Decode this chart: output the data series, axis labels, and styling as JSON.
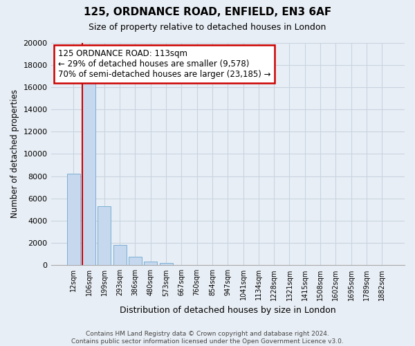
{
  "title": "125, ORDNANCE ROAD, ENFIELD, EN3 6AF",
  "subtitle": "Size of property relative to detached houses in London",
  "xlabel": "Distribution of detached houses by size in London",
  "ylabel": "Number of detached properties",
  "bar_labels": [
    "12sqm",
    "106sqm",
    "199sqm",
    "293sqm",
    "386sqm",
    "480sqm",
    "573sqm",
    "667sqm",
    "760sqm",
    "854sqm",
    "947sqm",
    "1041sqm",
    "1134sqm",
    "1228sqm",
    "1321sqm",
    "1415sqm",
    "1508sqm",
    "1602sqm",
    "1695sqm",
    "1789sqm",
    "1882sqm"
  ],
  "bar_values": [
    8200,
    16600,
    5300,
    1850,
    750,
    300,
    180,
    0,
    0,
    0,
    0,
    0,
    0,
    0,
    0,
    0,
    0,
    0,
    0,
    0,
    0
  ],
  "bar_color": "#c5d8ee",
  "bar_edge_color": "#7bafd4",
  "vline_color": "#cc0000",
  "ylim": [
    0,
    20000
  ],
  "yticks": [
    0,
    2000,
    4000,
    6000,
    8000,
    10000,
    12000,
    14000,
    16000,
    18000,
    20000
  ],
  "annotation_line1": "125 ORDNANCE ROAD: 113sqm",
  "annotation_line2": "← 29% of detached houses are smaller (9,578)",
  "annotation_line3": "70% of semi-detached houses are larger (23,185) →",
  "annotation_box_color": "#ffffff",
  "annotation_border_color": "#cc0000",
  "footer_line1": "Contains HM Land Registry data © Crown copyright and database right 2024.",
  "footer_line2": "Contains public sector information licensed under the Open Government Licence v3.0.",
  "background_color": "#e8eef5",
  "grid_color": "#c8d4e0",
  "fig_width": 6.0,
  "fig_height": 5.0
}
